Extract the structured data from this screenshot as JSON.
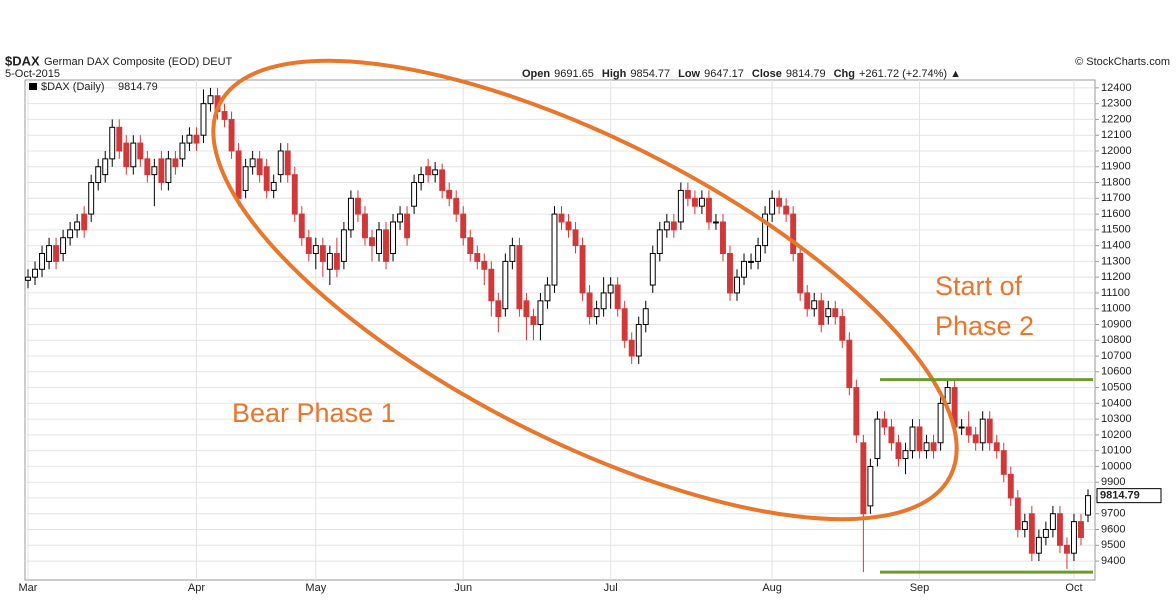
{
  "chart_data": {
    "type": "candlestick",
    "header": {
      "symbol": "$DAX",
      "name": "German DAX Composite (EOD) DEUT",
      "date": "5-Oct-2015",
      "source": "© StockCharts.com",
      "quote": [
        {
          "label": "Open",
          "value": "9691.65"
        },
        {
          "label": "High",
          "value": "9854.77"
        },
        {
          "label": "Low",
          "value": "9647.17"
        },
        {
          "label": "Close",
          "value": "9814.79"
        },
        {
          "label": "Chg",
          "value": "+261.72 (+2.74%) ▲"
        }
      ]
    },
    "annotations": [
      "Bear Phase 1",
      "Start of",
      "Phase 2"
    ],
    "categories": [
      "Mar",
      null,
      null,
      null,
      null,
      null,
      null,
      null,
      null,
      null,
      null,
      null,
      null,
      null,
      null,
      null,
      null,
      null,
      null,
      null,
      null,
      null,
      null,
      null,
      "Apr",
      null,
      null,
      null,
      null,
      null,
      null,
      null,
      null,
      null,
      null,
      null,
      null,
      null,
      null,
      null,
      null,
      "May",
      null,
      null,
      null,
      null,
      null,
      null,
      null,
      null,
      null,
      null,
      null,
      null,
      null,
      null,
      null,
      null,
      null,
      null,
      null,
      null,
      "Jun",
      null,
      null,
      null,
      null,
      null,
      null,
      null,
      null,
      null,
      null,
      null,
      null,
      null,
      null,
      null,
      null,
      null,
      null,
      null,
      null,
      "Jul",
      null,
      null,
      null,
      null,
      null,
      null,
      null,
      null,
      null,
      null,
      null,
      null,
      null,
      null,
      null,
      null,
      null,
      null,
      null,
      null,
      null,
      null,
      "Aug",
      null,
      null,
      null,
      null,
      null,
      null,
      null,
      null,
      null,
      null,
      null,
      null,
      null,
      null,
      null,
      null,
      null,
      null,
      null,
      null,
      "Sep",
      null,
      null,
      null,
      null,
      null,
      null,
      null,
      null,
      null,
      null,
      null,
      null,
      null,
      null,
      null,
      null,
      null,
      null,
      null,
      null,
      null,
      "Oct",
      null,
      null
    ],
    "series": [
      {
        "name": "$DAX (Daily)",
        "open": [
          11180,
          11200,
          11250,
          11300,
          11400,
          11350,
          11450,
          11500,
          11600,
          11600,
          11800,
          11850,
          11950,
          12150,
          12050,
          11900,
          12050,
          11950,
          11850,
          11950,
          11800,
          11950,
          11950,
          12050,
          12100,
          12100,
          12300,
          12350,
          12250,
          12200,
          12000,
          11750,
          11900,
          11950,
          11900,
          11750,
          11850,
          12000,
          11850,
          11600,
          11450,
          11350,
          11400,
          11250,
          11350,
          11300,
          11500,
          11700,
          11600,
          11450,
          11350,
          11500,
          11350,
          11550,
          11600,
          11650,
          11800,
          11900,
          11850,
          11880,
          11750,
          11700,
          11600,
          11450,
          11350,
          11300,
          11250,
          11050,
          11000,
          11300,
          11400,
          11050,
          10950,
          10900,
          11050,
          11150,
          11600,
          11550,
          11500,
          11400,
          11100,
          10950,
          11000,
          11100,
          11150,
          11000,
          10800,
          10700,
          10900,
          11150,
          11350,
          11500,
          11550,
          11550,
          11750,
          11700,
          11650,
          11700,
          11550,
          11550,
          11350,
          11100,
          11200,
          11300,
          11300,
          11400,
          11600,
          11700,
          11650,
          11600,
          11350,
          11100,
          11000,
          11050,
          10950,
          11000,
          10950,
          10800,
          10500,
          10150,
          9750,
          10050,
          10300,
          10250,
          10150,
          10050,
          10100,
          10250,
          10100,
          10150,
          10150,
          10400,
          10500,
          10250,
          10250,
          10200,
          10150,
          10300,
          10150,
          10100,
          9950,
          9800,
          9600,
          9700,
          9450,
          9550,
          9600,
          9700,
          9500,
          9450,
          9650,
          9691.65
        ],
        "high": [
          11250,
          11300,
          11400,
          11450,
          11450,
          11500,
          11550,
          11600,
          11650,
          11850,
          11950,
          12000,
          12200,
          12200,
          12100,
          12100,
          12100,
          12000,
          11950,
          12000,
          12000,
          12000,
          12100,
          12150,
          12150,
          12390,
          12400,
          12400,
          12300,
          12250,
          12050,
          11950,
          12000,
          12000,
          11950,
          11850,
          12050,
          12050,
          11900,
          11650,
          11500,
          11450,
          11450,
          11400,
          11450,
          11550,
          11750,
          11750,
          11650,
          11500,
          11550,
          11550,
          11600,
          11650,
          11650,
          11850,
          11900,
          11950,
          11930,
          11920,
          11800,
          11750,
          11650,
          11500,
          11400,
          11350,
          11300,
          11100,
          11350,
          11450,
          11450,
          11100,
          11000,
          11100,
          11200,
          11650,
          11650,
          11600,
          11550,
          11450,
          11150,
          11050,
          11200,
          11200,
          11200,
          11050,
          10850,
          10950,
          11050,
          11400,
          11550,
          11600,
          11600,
          11800,
          11800,
          11750,
          11750,
          11750,
          11600,
          11600,
          11400,
          11250,
          11350,
          11350,
          11450,
          11650,
          11750,
          11750,
          11700,
          11650,
          11400,
          11150,
          11100,
          11100,
          11050,
          11050,
          11000,
          10850,
          10550,
          10200,
          10050,
          10350,
          10350,
          10300,
          10200,
          10150,
          10300,
          10300,
          10200,
          10200,
          10450,
          10550,
          10550,
          10300,
          10350,
          10250,
          10350,
          10350,
          10200,
          10150,
          10000,
          9850,
          9700,
          9750,
          9600,
          9650,
          9750,
          9750,
          9550,
          9700,
          9700,
          9854.77
        ],
        "low": [
          11130,
          11150,
          11200,
          11250,
          11250,
          11300,
          11400,
          11450,
          11450,
          11550,
          11750,
          11800,
          11900,
          11950,
          11850,
          11850,
          11900,
          11800,
          11650,
          11750,
          11750,
          11850,
          11900,
          12000,
          12000,
          12050,
          12250,
          12200,
          12150,
          11950,
          11650,
          11700,
          11850,
          11800,
          11700,
          11700,
          11800,
          11800,
          11550,
          11400,
          11300,
          11250,
          11200,
          11150,
          11200,
          11250,
          11450,
          11550,
          11400,
          11300,
          11300,
          11250,
          11300,
          11500,
          11400,
          11600,
          11750,
          11800,
          11800,
          11700,
          11650,
          11550,
          11400,
          11300,
          11250,
          11150,
          10950,
          10850,
          10950,
          11250,
          10950,
          10800,
          10800,
          10800,
          11000,
          11100,
          11500,
          11450,
          11350,
          11050,
          10900,
          10900,
          10950,
          11000,
          10950,
          10750,
          10650,
          10650,
          10850,
          11100,
          11300,
          11450,
          11450,
          11500,
          11650,
          11600,
          11600,
          11500,
          11500,
          11300,
          11050,
          11050,
          11150,
          11250,
          11250,
          11350,
          11550,
          11600,
          11550,
          11300,
          11050,
          10950,
          10950,
          10850,
          10900,
          10900,
          10750,
          10450,
          10150,
          9330,
          9700,
          10000,
          10200,
          10100,
          10000,
          9950,
          10050,
          10050,
          10050,
          10050,
          10100,
          10350,
          10200,
          10200,
          10150,
          10100,
          10100,
          10100,
          10050,
          9900,
          9750,
          9550,
          9550,
          9400,
          9400,
          9500,
          9550,
          9450,
          9350,
          9400,
          9500,
          9647.17
        ],
        "close": [
          11200,
          11250,
          11350,
          11400,
          11300,
          11450,
          11500,
          11550,
          11500,
          11800,
          11900,
          11950,
          12150,
          12000,
          11900,
          12050,
          11950,
          11850,
          11900,
          11800,
          11950,
          11900,
          12050,
          12100,
          12050,
          12300,
          12350,
          12250,
          12200,
          12000,
          11700,
          11900,
          11950,
          11850,
          11750,
          11800,
          12000,
          11850,
          11600,
          11450,
          11350,
          11400,
          11300,
          11350,
          11250,
          11500,
          11700,
          11600,
          11450,
          11400,
          11500,
          11300,
          11550,
          11600,
          11450,
          11800,
          11850,
          11850,
          11880,
          11750,
          11700,
          11600,
          11450,
          11350,
          11300,
          11250,
          11050,
          10950,
          11300,
          11400,
          11000,
          10950,
          10900,
          11050,
          11150,
          11600,
          11550,
          11500,
          11400,
          11100,
          10950,
          11000,
          11100,
          11150,
          11000,
          10800,
          10700,
          10900,
          11000,
          11350,
          11500,
          11550,
          11500,
          11750,
          11700,
          11650,
          11700,
          11550,
          11550,
          11350,
          11100,
          11200,
          11300,
          11300,
          11400,
          11600,
          11700,
          11650,
          11600,
          11350,
          11100,
          11000,
          11050,
          10900,
          11000,
          10950,
          10800,
          10500,
          10200,
          9700,
          10000,
          10300,
          10250,
          10150,
          10050,
          10100,
          10250,
          10100,
          10150,
          10100,
          10400,
          10500,
          10250,
          10250,
          10200,
          10150,
          10300,
          10150,
          10100,
          9950,
          9800,
          9600,
          9650,
          9450,
          9550,
          9600,
          9700,
          9500,
          9450,
          9650,
          9550,
          9814.79
        ]
      }
    ],
    "up_color": "#000000",
    "down_color": "#d0383a",
    "levels": [
      {
        "value": 10550,
        "color": "#6e9b2d"
      },
      {
        "value": 9330,
        "color": "#6e9b2d"
      }
    ],
    "ylim": [
      9280,
      12450
    ],
    "yticks": [
      9400,
      9500,
      9600,
      9700,
      9800,
      9900,
      10000,
      10100,
      10200,
      10300,
      10400,
      10500,
      10600,
      10700,
      10800,
      10900,
      11000,
      11100,
      11200,
      11300,
      11400,
      11500,
      11600,
      11700,
      11800,
      11900,
      12000,
      12100,
      12200,
      12300,
      12400
    ],
    "grid": true
  }
}
